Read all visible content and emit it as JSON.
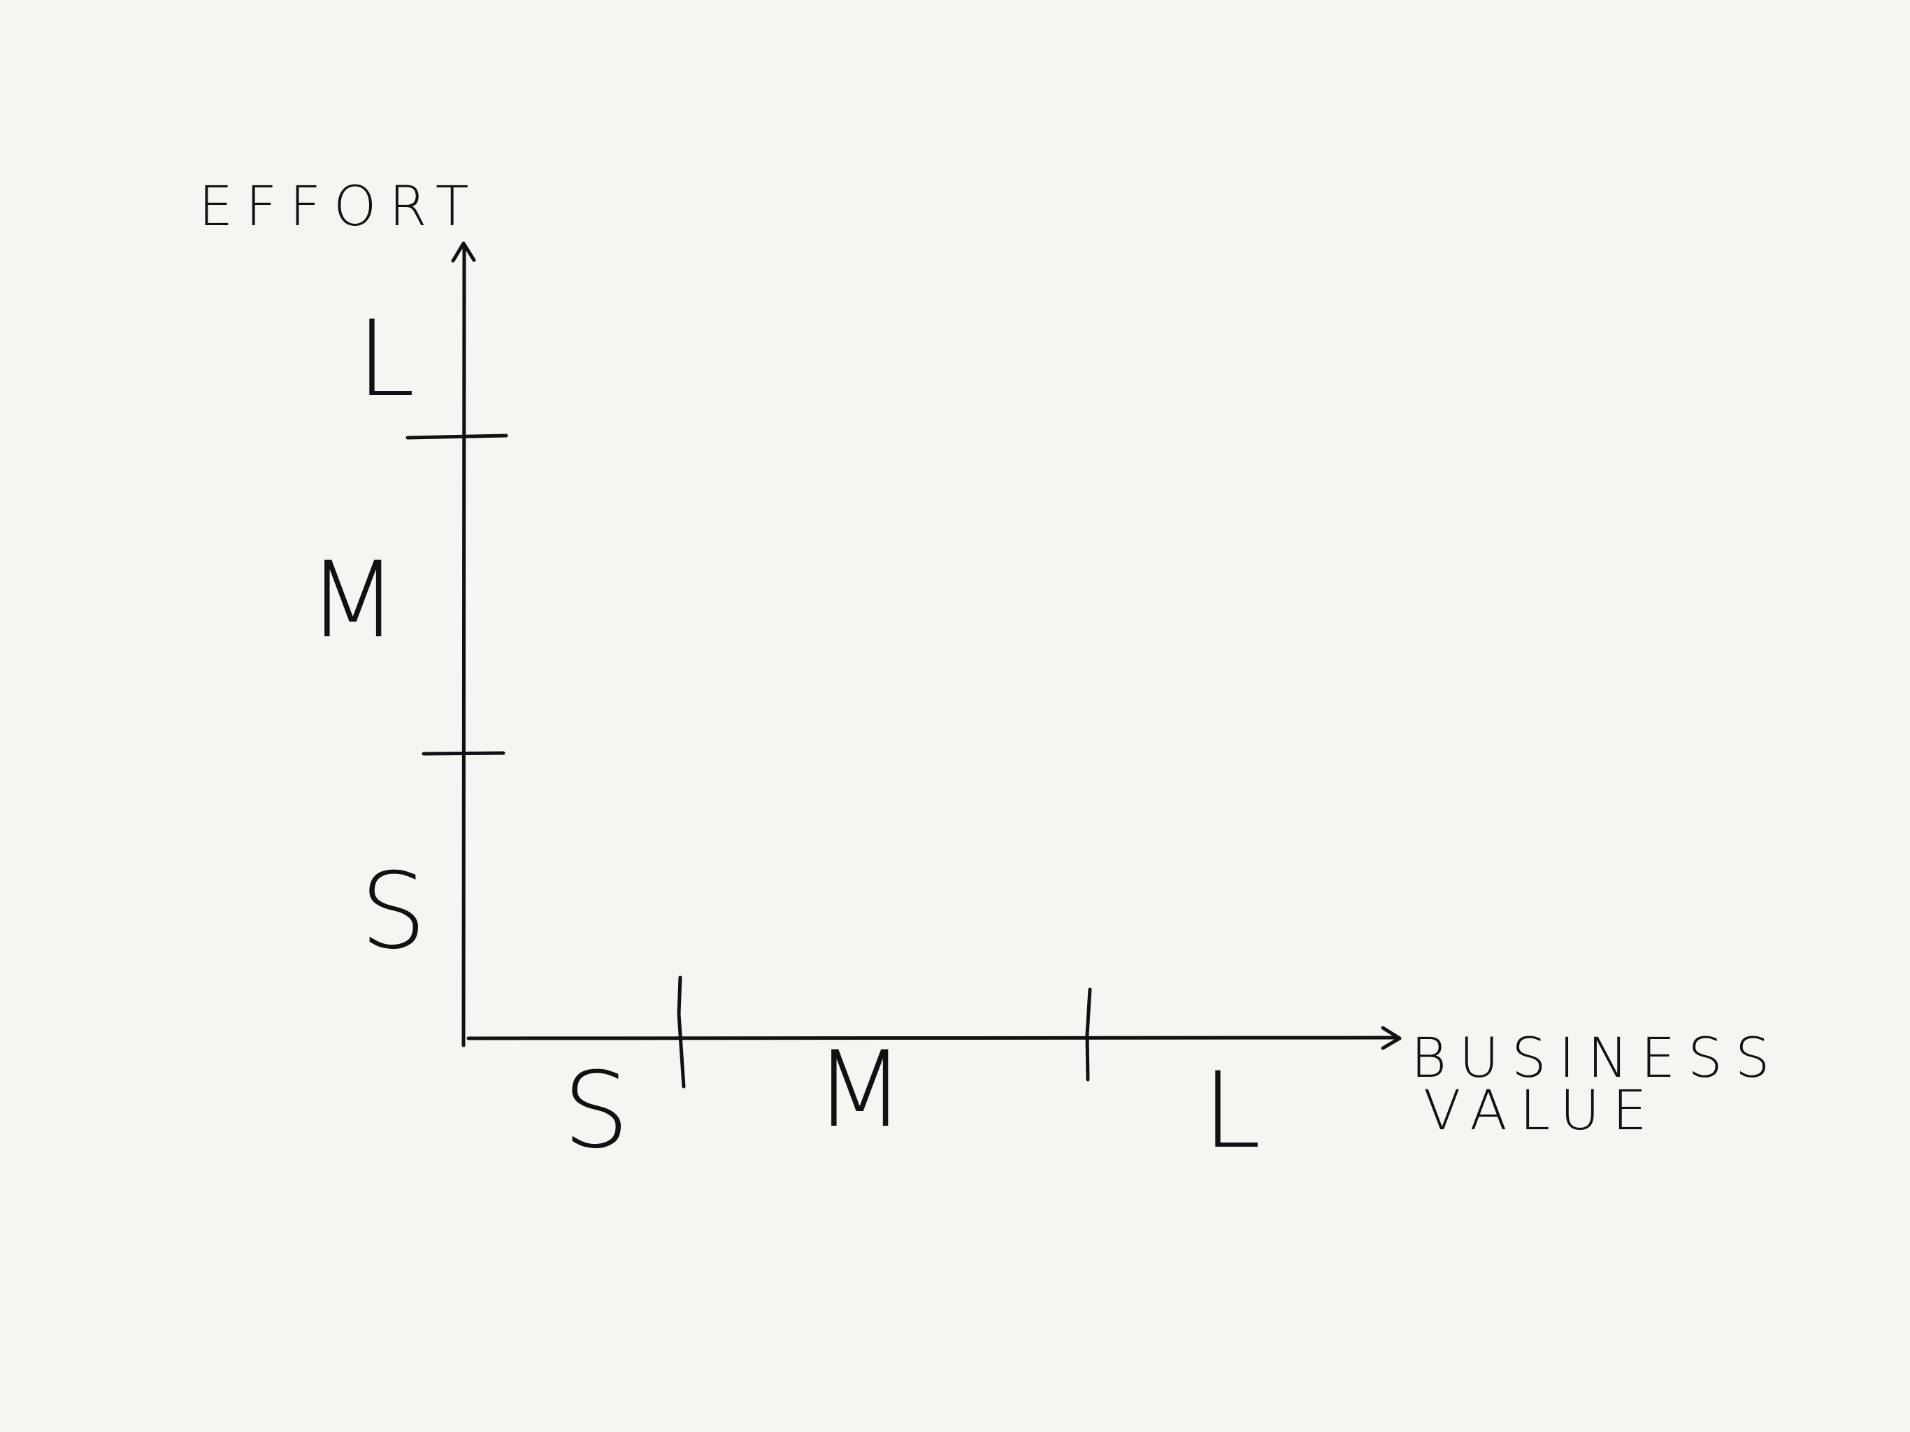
{
  "colors": {
    "background": "#f6f5f1",
    "ink": "#111111"
  },
  "diagram": {
    "y_axis": {
      "title": "EFFORT",
      "bands": [
        "S",
        "M",
        "L"
      ]
    },
    "x_axis": {
      "title_line1": "BUSINESS",
      "title_line2": "VALUE",
      "bands": [
        "S",
        "M",
        "L"
      ]
    }
  }
}
